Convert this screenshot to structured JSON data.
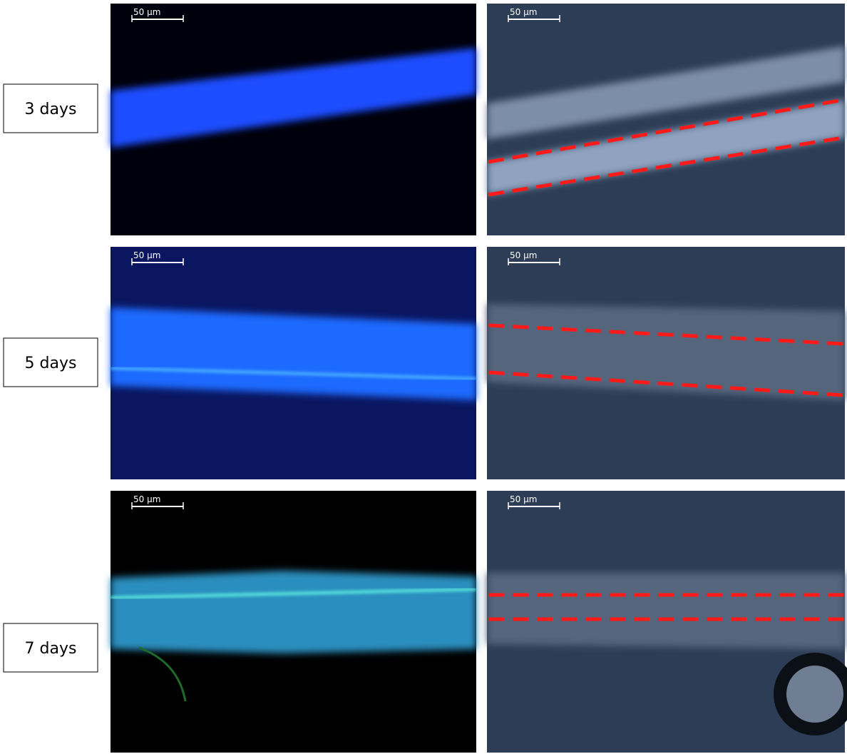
{
  "rows": [
    {
      "label": "3 days",
      "fluorescence_scale": "50 µm",
      "phase_scale": "50 µm"
    },
    {
      "label": "5 days",
      "fluorescence_scale": "50 µm",
      "phase_scale": "50 µm"
    },
    {
      "label": "7 days",
      "fluorescence_scale": "50 µm",
      "phase_scale": "50 µm"
    }
  ]
}
